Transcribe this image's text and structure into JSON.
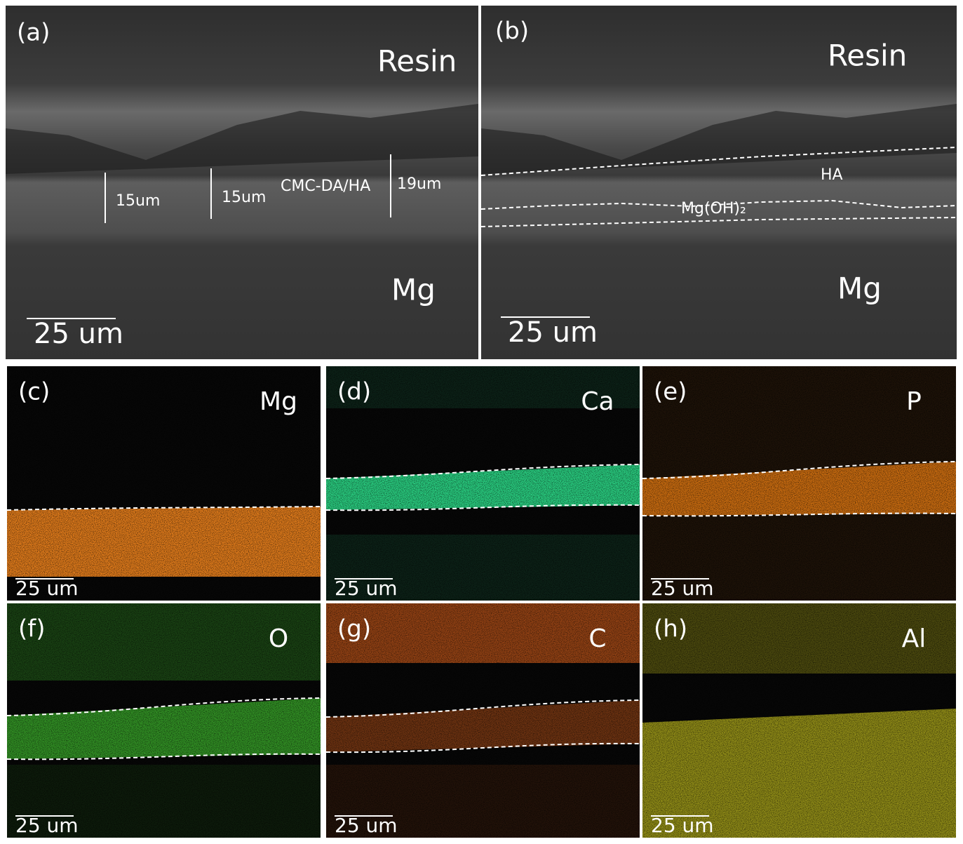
{
  "sem_panels": [
    {
      "label": "(a)",
      "top_label": "Resin",
      "bottom_label": "Mg",
      "measurements": [
        "15um",
        "15um",
        "19um"
      ],
      "layer": "CMC-DA/HA",
      "scale_bar": "25 um"
    },
    {
      "label": "(b)",
      "top_label": "Resin",
      "bottom_label": "Mg",
      "layers": [
        "HA",
        "Mg(OH)₂"
      ],
      "scale_bar": "25 um"
    }
  ],
  "maps": [
    {
      "label": "(c)",
      "element": "Mg",
      "scale_bar": "25 um",
      "color": "#e8801c"
    },
    {
      "label": "(d)",
      "element": "Ca",
      "scale_bar": "25 um",
      "color": "#2ee08c"
    },
    {
      "label": "(e)",
      "element": "P",
      "scale_bar": "25 um",
      "color": "#e47a12"
    },
    {
      "label": "(f)",
      "element": "O",
      "scale_bar": "25 um",
      "color": "#3cb02c"
    },
    {
      "label": "(g)",
      "element": "C",
      "scale_bar": "25 um",
      "color": "#c0561a"
    },
    {
      "label": "(h)",
      "element": "Al",
      "scale_bar": "25 um",
      "color": "#c8c21e"
    }
  ]
}
